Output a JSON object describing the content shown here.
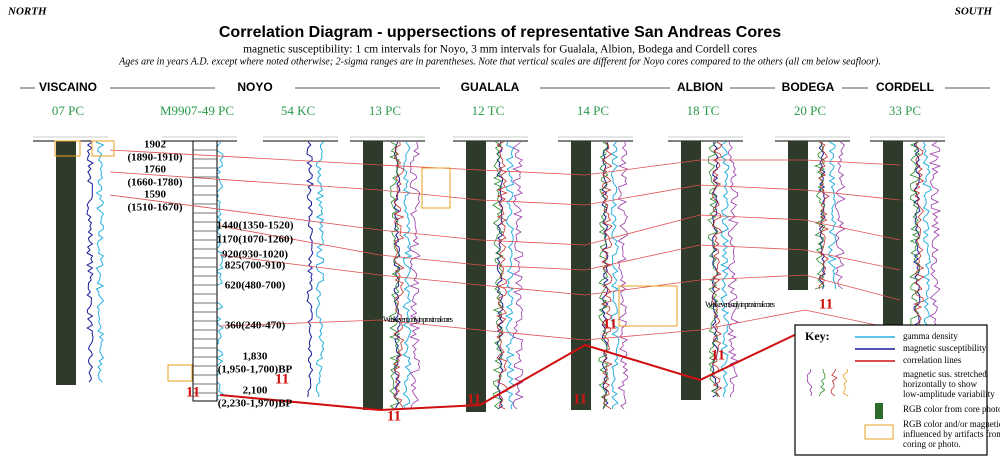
{
  "header": {
    "north": "NORTH",
    "south": "SOUTH",
    "title": "Correlation Diagram - uppersections of representative San Andreas Cores",
    "subtitle": "magnetic susceptibility: 1 cm intervals for Noyo, 3 mm intervals for Gualala, Albion, Bodega and Cordell cores",
    "note": "Ages are in years A.D. except where noted otherwise; 2-sigma ranges are in parentheses.  Note that vertical scales are different for Noyo cores compared to the others (all cm below seafloor)."
  },
  "sites": [
    "VISCAINO",
    "NOYO",
    "GUALALA",
    "ALBION",
    "BODEGA",
    "CORDELL"
  ],
  "cores": [
    "07 PC",
    "M9907-49 PC",
    "54 KC",
    "13 PC",
    "12 TC",
    "14 PC",
    "18 TC",
    "20 PC",
    "33 PC"
  ],
  "ages": [
    "1902",
    "(1890-1910)",
    "1760",
    "(1660-1780)",
    "1590",
    "(1510-1670)",
    "1440(1350-1520)",
    "1170(1070-1260)",
    "920(930-1020)",
    "825(700-910)",
    "620(480-700)",
    "360(240-470)",
    "1,830",
    "(1,950-1,700)BP",
    "2,100",
    "(2,230-1,970)BP"
  ],
  "event_labels": [
    "11",
    "11",
    "11",
    "11",
    "11",
    "11",
    "11",
    "11",
    "11"
  ],
  "notes": [
    "Weak event, only in proximal cores",
    "Weak event, only in proximal cores"
  ],
  "key": {
    "title": "Key:",
    "items": [
      "gamma density",
      "magnetic susceptibility",
      "correlation lines",
      "magnetic sus. stretched horizontally to show low-amplitude variability",
      "RGB color from core photo",
      "RGB color and/or magnetics influenced by artifacts from coring or photo."
    ]
  }
}
